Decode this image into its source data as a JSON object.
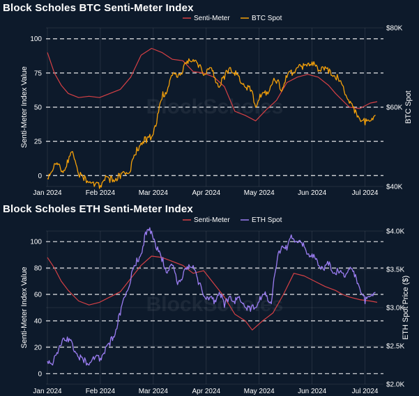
{
  "colors": {
    "background": "#0d1a2b",
    "senti": "#d64045",
    "btc": "#f5a10a",
    "eth": "#9b7df2",
    "grid": "#ffffff"
  },
  "chart_data": [
    {
      "type": "line",
      "title": "Block Scholes BTC Senti-Meter Index",
      "ylabel": "Senti-Meter Index Value",
      "y2label": "BTC Spot",
      "ylim": [
        -8,
        108
      ],
      "y2lim": [
        40000,
        80000
      ],
      "x_ticks": [
        "Jan 2024",
        "Feb 2024",
        "Mar 2024",
        "Apr 2024",
        "May 2024",
        "Jun 2024",
        "Jul 2024"
      ],
      "y_ticks": [
        "0",
        "25",
        "50",
        "75",
        "100"
      ],
      "y2_ticks": [
        "$40K",
        "$60K",
        "$80K"
      ],
      "legend_position": "top-center",
      "grid": true,
      "series": [
        {
          "name": "Senti-Meter",
          "axis": "left",
          "x": [
            0,
            4,
            8,
            12,
            18,
            24,
            30,
            36,
            42,
            48,
            54,
            60,
            66,
            72,
            78,
            84,
            90,
            96,
            102,
            108,
            114,
            120,
            126,
            132,
            138,
            144,
            150,
            156,
            162,
            166,
            170,
            174,
            180,
            186,
            190
          ],
          "values": [
            90,
            75,
            66,
            60,
            57,
            58,
            57,
            60,
            63,
            72,
            88,
            93,
            90,
            85,
            84,
            76,
            75,
            72,
            65,
            47,
            44,
            40,
            48,
            55,
            68,
            72,
            74,
            72,
            66,
            60,
            55,
            50,
            49,
            53,
            54
          ]
        },
        {
          "name": "BTC Spot",
          "axis": "right",
          "x": [
            0,
            3,
            6,
            9,
            12,
            15,
            18,
            21,
            24,
            27,
            30,
            33,
            36,
            39,
            42,
            45,
            48,
            51,
            54,
            57,
            60,
            63,
            66,
            69,
            72,
            75,
            78,
            81,
            84,
            87,
            90,
            93,
            96,
            99,
            102,
            105,
            108,
            111,
            114,
            117,
            120,
            123,
            126,
            129,
            132,
            135,
            138,
            141,
            144,
            147,
            150,
            153,
            156,
            159,
            162,
            165,
            168,
            171,
            174,
            177,
            180,
            183,
            186,
            189
          ],
          "values": [
            42000,
            44000,
            45500,
            43500,
            46000,
            48000,
            43000,
            41500,
            41000,
            40000,
            39500,
            41500,
            41000,
            41500,
            42000,
            43000,
            44000,
            48000,
            51000,
            51000,
            52500,
            56000,
            62000,
            64000,
            68000,
            67500,
            69000,
            71000,
            72000,
            70000,
            68000,
            69500,
            67500,
            65000,
            67000,
            70000,
            68000,
            66500,
            65000,
            64000,
            60000,
            62500,
            63000,
            65500,
            66000,
            64000,
            67500,
            68000,
            70000,
            69500,
            71000,
            70500,
            69000,
            70000,
            68500,
            68000,
            66500,
            64000,
            61000,
            58500,
            57000,
            55500,
            56500,
            58000
          ]
        }
      ]
    },
    {
      "type": "line",
      "title": "Block Scholes ETH Senti-Meter Index",
      "ylabel": "Senti-Meter Index Value",
      "y2label": "ETH Spot Price ($)",
      "ylim": [
        -8,
        108
      ],
      "y2lim": [
        2000,
        4000
      ],
      "x_ticks": [
        "Jan 2024",
        "Feb 2024",
        "Mar 2024",
        "Apr 2024",
        "May 2024",
        "Jun 2024",
        "Jul 2024"
      ],
      "y_ticks": [
        "0",
        "20",
        "40",
        "60",
        "80",
        "100"
      ],
      "y2_ticks": [
        "$2.0K",
        "$2.5K",
        "$3.0K",
        "$3.5K",
        "$4.0K"
      ],
      "legend_position": "top-center",
      "grid": true,
      "series": [
        {
          "name": "Senti-Meter",
          "axis": "left",
          "x": [
            0,
            4,
            8,
            12,
            18,
            24,
            30,
            36,
            42,
            48,
            54,
            60,
            66,
            72,
            78,
            84,
            90,
            96,
            102,
            108,
            114,
            118,
            124,
            130,
            136,
            142,
            148,
            154,
            160,
            166,
            170,
            174,
            180,
            186,
            190
          ],
          "values": [
            88,
            80,
            70,
            63,
            55,
            52,
            54,
            58,
            62,
            72,
            82,
            89,
            88,
            85,
            82,
            76,
            78,
            68,
            58,
            45,
            40,
            33,
            40,
            46,
            60,
            76,
            74,
            70,
            66,
            63,
            60,
            58,
            56,
            55,
            54
          ]
        },
        {
          "name": "ETH Spot",
          "axis": "right",
          "x": [
            0,
            3,
            6,
            9,
            12,
            15,
            18,
            21,
            24,
            27,
            30,
            33,
            36,
            39,
            42,
            45,
            48,
            51,
            54,
            57,
            60,
            63,
            66,
            69,
            72,
            75,
            78,
            81,
            84,
            87,
            90,
            93,
            96,
            99,
            102,
            105,
            108,
            111,
            114,
            117,
            120,
            123,
            126,
            129,
            132,
            135,
            138,
            141,
            144,
            147,
            150,
            153,
            156,
            159,
            162,
            165,
            168,
            171,
            174,
            177,
            180,
            183,
            186,
            189
          ],
          "values": [
            2300,
            2250,
            2400,
            2600,
            2550,
            2450,
            2350,
            2280,
            2250,
            2320,
            2300,
            2400,
            2500,
            2650,
            2900,
            3150,
            3350,
            3550,
            3700,
            3950,
            4000,
            3750,
            3600,
            3450,
            3550,
            3300,
            3400,
            3500,
            3550,
            3300,
            3150,
            3100,
            3050,
            3200,
            3000,
            3150,
            3050,
            3100,
            3000,
            2950,
            3000,
            3100,
            3150,
            3050,
            3550,
            3800,
            3750,
            3900,
            3850,
            3800,
            3700,
            3650,
            3550,
            3500,
            3550,
            3450,
            3450,
            3400,
            3500,
            3400,
            3250,
            3050,
            3150,
            3200
          ]
        }
      ]
    }
  ]
}
